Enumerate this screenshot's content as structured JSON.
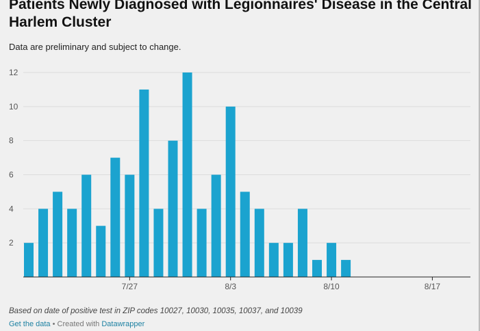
{
  "title": "Patients Newly Diagnosed with Legionnaires' Disease in the Central Harlem Cluster",
  "subtitle": "Data are preliminary and subject to change.",
  "footer": {
    "note": "Based on date of positive test in ZIP codes 10027, 10030, 10035, 10037, and 10039",
    "get_data_label": "Get the data",
    "separator": " • Created with ",
    "datawrapper_label": "Datawrapper"
  },
  "colors": {
    "bar": "#1ba3cf",
    "grid": "#dddddd",
    "axis": "#222222",
    "background": "#f0f0f0",
    "link": "#1d81a2"
  },
  "chart_data": {
    "type": "bar",
    "x_axis": "date",
    "x_start_date": "2025-07-20",
    "x_tick_labels": [
      {
        "label": "7/27",
        "index": 7
      },
      {
        "label": "8/3",
        "index": 14
      },
      {
        "label": "8/10",
        "index": 21
      },
      {
        "label": "8/17",
        "index": 28
      }
    ],
    "categories": [
      "7/20",
      "7/21",
      "7/22",
      "7/23",
      "7/24",
      "7/25",
      "7/26",
      "7/27",
      "7/28",
      "7/29",
      "7/30",
      "7/31",
      "8/1",
      "8/2",
      "8/3",
      "8/4",
      "8/5",
      "8/6",
      "8/7",
      "8/8",
      "8/9",
      "8/10",
      "8/11",
      "8/12",
      "8/13",
      "8/14",
      "8/15",
      "8/16",
      "8/17",
      "8/18",
      "8/19"
    ],
    "values": [
      2,
      4,
      5,
      4,
      6,
      3,
      7,
      6,
      11,
      4,
      8,
      12,
      4,
      6,
      10,
      5,
      4,
      2,
      2,
      4,
      1,
      2,
      1,
      0,
      0,
      0,
      0,
      0,
      0,
      0,
      0
    ],
    "y_ticks": [
      2,
      4,
      6,
      8,
      10,
      12
    ],
    "ylim": [
      0,
      12
    ],
    "grid": true,
    "title": "",
    "xlabel": "",
    "ylabel": ""
  }
}
